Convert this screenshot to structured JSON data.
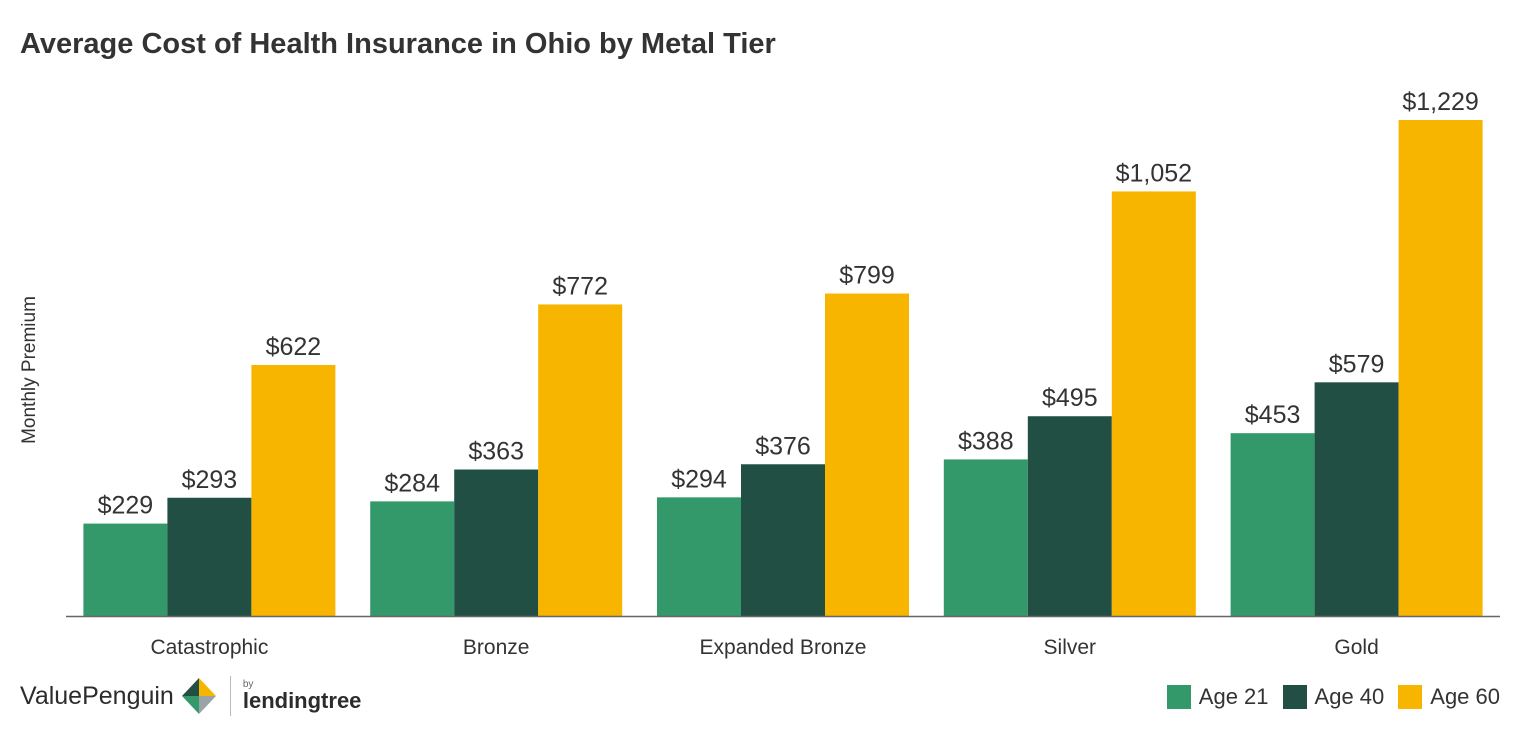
{
  "chart_data": {
    "type": "bar",
    "title": "Average Cost of Health Insurance in Ohio by Metal Tier",
    "ylabel": "Monthly Premium",
    "xlabel": "",
    "categories": [
      "Catastrophic",
      "Bronze",
      "Expanded Bronze",
      "Silver",
      "Gold"
    ],
    "series": [
      {
        "name": "Age 21",
        "color": "#34996a",
        "values": [
          229,
          284,
          294,
          388,
          453
        ],
        "labels": [
          "$229",
          "$284",
          "$294",
          "$388",
          "$453"
        ]
      },
      {
        "name": "Age 40",
        "color": "#214f44",
        "values": [
          293,
          363,
          376,
          495,
          579
        ],
        "labels": [
          "$293",
          "$363",
          "$376",
          "$495",
          "$579"
        ]
      },
      {
        "name": "Age 60",
        "color": "#f7b500",
        "values": [
          622,
          772,
          799,
          1052,
          1229
        ],
        "labels": [
          "$622",
          "$772",
          "$799",
          "$1,052",
          "$1,229"
        ]
      }
    ],
    "ylim": [
      0,
      1229
    ],
    "grid": false,
    "legend": "bottom-right"
  },
  "branding": {
    "valuepenguin": "ValuePenguin",
    "by": "by",
    "lendingtree": "lendingtree"
  }
}
